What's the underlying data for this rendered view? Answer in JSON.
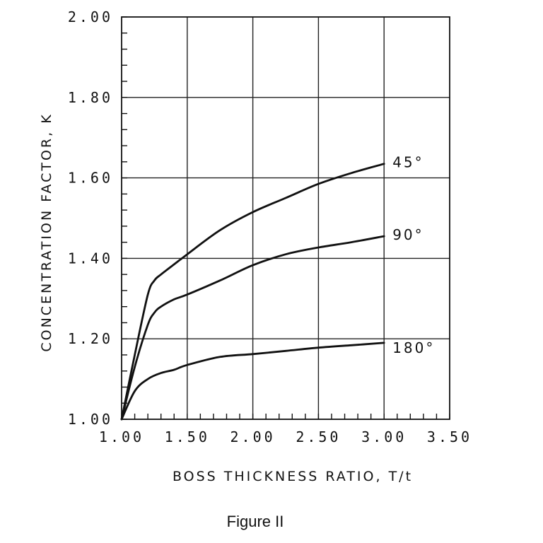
{
  "chart_data": {
    "type": "line",
    "title": "",
    "xlabel": "BOSS THICKNESS RATIO, T/t",
    "ylabel": "CONCENTRATION FACTOR, K",
    "xlim": [
      1.0,
      3.5
    ],
    "ylim": [
      1.0,
      2.0
    ],
    "xticks": [
      "1.00",
      "1.50",
      "2.00",
      "2.50",
      "3.00",
      "3.50"
    ],
    "yticks": [
      "1.00",
      "1.20",
      "1.40",
      "1.60",
      "1.80",
      "2.00"
    ],
    "x_grid_values": [
      1.5,
      2.0,
      2.5,
      3.0
    ],
    "y_grid_values": [
      1.2,
      1.4,
      1.6,
      1.8
    ],
    "grid": true,
    "legend": "none",
    "series": [
      {
        "name": "45°",
        "x": [
          1.0,
          1.1,
          1.2,
          1.25,
          1.3,
          1.4,
          1.5,
          1.75,
          2.0,
          2.25,
          2.5,
          2.75,
          3.0
        ],
        "y": [
          1.0,
          1.16,
          1.31,
          1.345,
          1.36,
          1.385,
          1.41,
          1.47,
          1.515,
          1.55,
          1.585,
          1.612,
          1.635
        ]
      },
      {
        "name": "90°",
        "x": [
          1.0,
          1.1,
          1.2,
          1.25,
          1.3,
          1.4,
          1.5,
          1.75,
          2.0,
          2.25,
          2.5,
          2.75,
          3.0
        ],
        "y": [
          1.0,
          1.13,
          1.235,
          1.265,
          1.28,
          1.298,
          1.31,
          1.345,
          1.383,
          1.41,
          1.427,
          1.44,
          1.455
        ]
      },
      {
        "name": "180°",
        "x": [
          1.0,
          1.1,
          1.2,
          1.3,
          1.4,
          1.5,
          1.75,
          2.0,
          2.25,
          2.5,
          2.75,
          3.0
        ],
        "y": [
          1.0,
          1.07,
          1.1,
          1.115,
          1.123,
          1.135,
          1.155,
          1.162,
          1.17,
          1.178,
          1.184,
          1.19
        ]
      }
    ]
  },
  "caption": "Figure II"
}
